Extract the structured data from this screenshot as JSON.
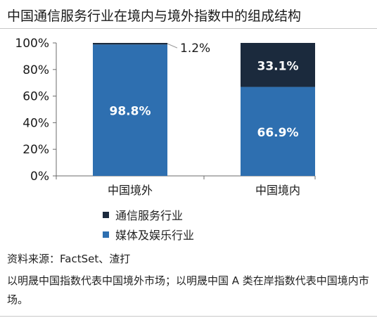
{
  "title": "中国通信服务行业在境内与境外指数中的组成结构",
  "colors": {
    "media": "#2e6fb0",
    "telecom": "#1b2a3d",
    "axis": "#6b6b6b",
    "label_dark_text": "#1a1a1a",
    "label_light_text": "#ffffff"
  },
  "chart_data": {
    "type": "bar",
    "stacked": true,
    "categories": [
      "中国境外",
      "中国境内"
    ],
    "series": [
      {
        "name": "媒体及娱乐行业",
        "values": [
          98.8,
          66.9
        ],
        "labels": [
          "98.8%",
          "66.9%"
        ]
      },
      {
        "name": "通信服务行业",
        "values": [
          1.2,
          33.1
        ],
        "labels": [
          "1.2%",
          "33.1%"
        ]
      }
    ],
    "y_ticks": [
      "0%",
      "20%",
      "40%",
      "60%",
      "80%",
      "100%"
    ],
    "ylim": [
      0,
      100
    ],
    "grid": false,
    "legend_position": "bottom"
  },
  "legend": [
    {
      "label": "通信服务行业"
    },
    {
      "label": "媒体及娱乐行业"
    }
  ],
  "source": "资料来源：FactSet、渣打",
  "note": "以明晟中国指数代表中国境外市场；以明晟中国 A 类在岸指数代表中国境内市场。"
}
